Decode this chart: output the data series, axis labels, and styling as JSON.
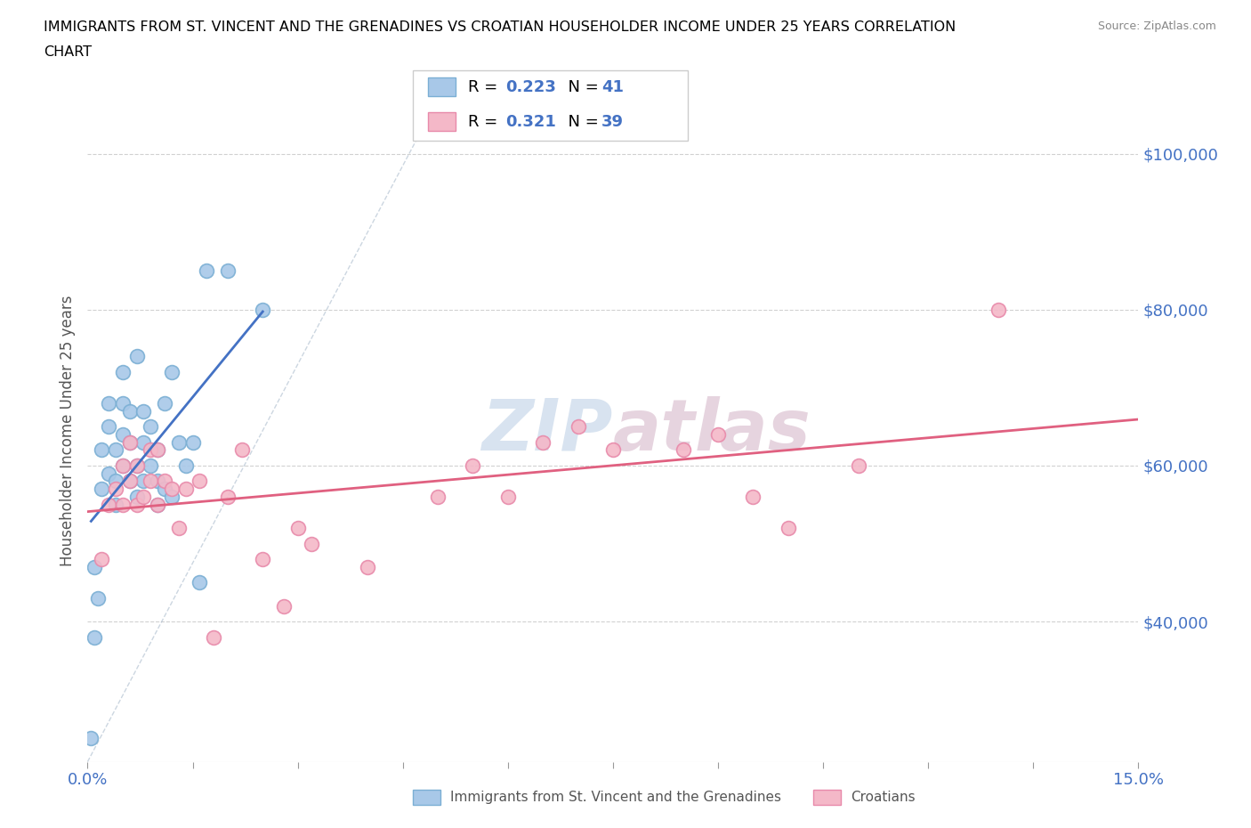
{
  "title_line1": "IMMIGRANTS FROM ST. VINCENT AND THE GRENADINES VS CROATIAN HOUSEHOLDER INCOME UNDER 25 YEARS CORRELATION",
  "title_line2": "CHART",
  "source": "Source: ZipAtlas.com",
  "ylabel": "Householder Income Under 25 years",
  "xlim": [
    0.0,
    0.15
  ],
  "ylim": [
    22000,
    107000
  ],
  "xticks": [
    0.0,
    0.015,
    0.03,
    0.045,
    0.06,
    0.075,
    0.09,
    0.105,
    0.12,
    0.135,
    0.15
  ],
  "xticklabels_show": {
    "0.0": "0.0%",
    "0.15": "15.0%"
  },
  "ytick_positions": [
    40000,
    60000,
    80000,
    100000
  ],
  "ytick_labels": [
    "$40,000",
    "$60,000",
    "$80,000",
    "$100,000"
  ],
  "R_blue": 0.223,
  "N_blue": 41,
  "R_pink": 0.321,
  "N_pink": 39,
  "blue_scatter_color": "#a8c8e8",
  "blue_scatter_edge": "#7bafd4",
  "pink_scatter_color": "#f4b8c8",
  "pink_scatter_edge": "#e88aaa",
  "blue_line_color": "#4472c4",
  "pink_line_color": "#e06080",
  "diag_line_color": "#aabbcc",
  "blue_x": [
    0.0005,
    0.001,
    0.001,
    0.0015,
    0.002,
    0.002,
    0.003,
    0.003,
    0.003,
    0.004,
    0.004,
    0.004,
    0.005,
    0.005,
    0.005,
    0.005,
    0.006,
    0.006,
    0.006,
    0.007,
    0.007,
    0.007,
    0.008,
    0.008,
    0.008,
    0.009,
    0.009,
    0.01,
    0.01,
    0.01,
    0.011,
    0.011,
    0.012,
    0.012,
    0.013,
    0.014,
    0.015,
    0.016,
    0.017,
    0.02,
    0.025
  ],
  "blue_y": [
    25000,
    47000,
    38000,
    43000,
    57000,
    62000,
    59000,
    65000,
    68000,
    58000,
    62000,
    55000,
    60000,
    64000,
    68000,
    72000,
    58000,
    63000,
    67000,
    56000,
    60000,
    74000,
    58000,
    63000,
    67000,
    60000,
    65000,
    58000,
    62000,
    55000,
    57000,
    68000,
    56000,
    72000,
    63000,
    60000,
    63000,
    45000,
    85000,
    85000,
    80000
  ],
  "pink_x": [
    0.002,
    0.003,
    0.004,
    0.005,
    0.005,
    0.006,
    0.006,
    0.007,
    0.007,
    0.008,
    0.009,
    0.009,
    0.01,
    0.01,
    0.011,
    0.012,
    0.013,
    0.014,
    0.016,
    0.018,
    0.02,
    0.022,
    0.025,
    0.028,
    0.03,
    0.032,
    0.04,
    0.05,
    0.055,
    0.06,
    0.065,
    0.07,
    0.075,
    0.085,
    0.09,
    0.095,
    0.1,
    0.11,
    0.13
  ],
  "pink_y": [
    48000,
    55000,
    57000,
    55000,
    60000,
    58000,
    63000,
    55000,
    60000,
    56000,
    58000,
    62000,
    55000,
    62000,
    58000,
    57000,
    52000,
    57000,
    58000,
    38000,
    56000,
    62000,
    48000,
    42000,
    52000,
    50000,
    47000,
    56000,
    60000,
    56000,
    63000,
    65000,
    62000,
    62000,
    64000,
    56000,
    52000,
    60000,
    80000
  ],
  "grid_color": "#cccccc",
  "background_color": "#ffffff"
}
